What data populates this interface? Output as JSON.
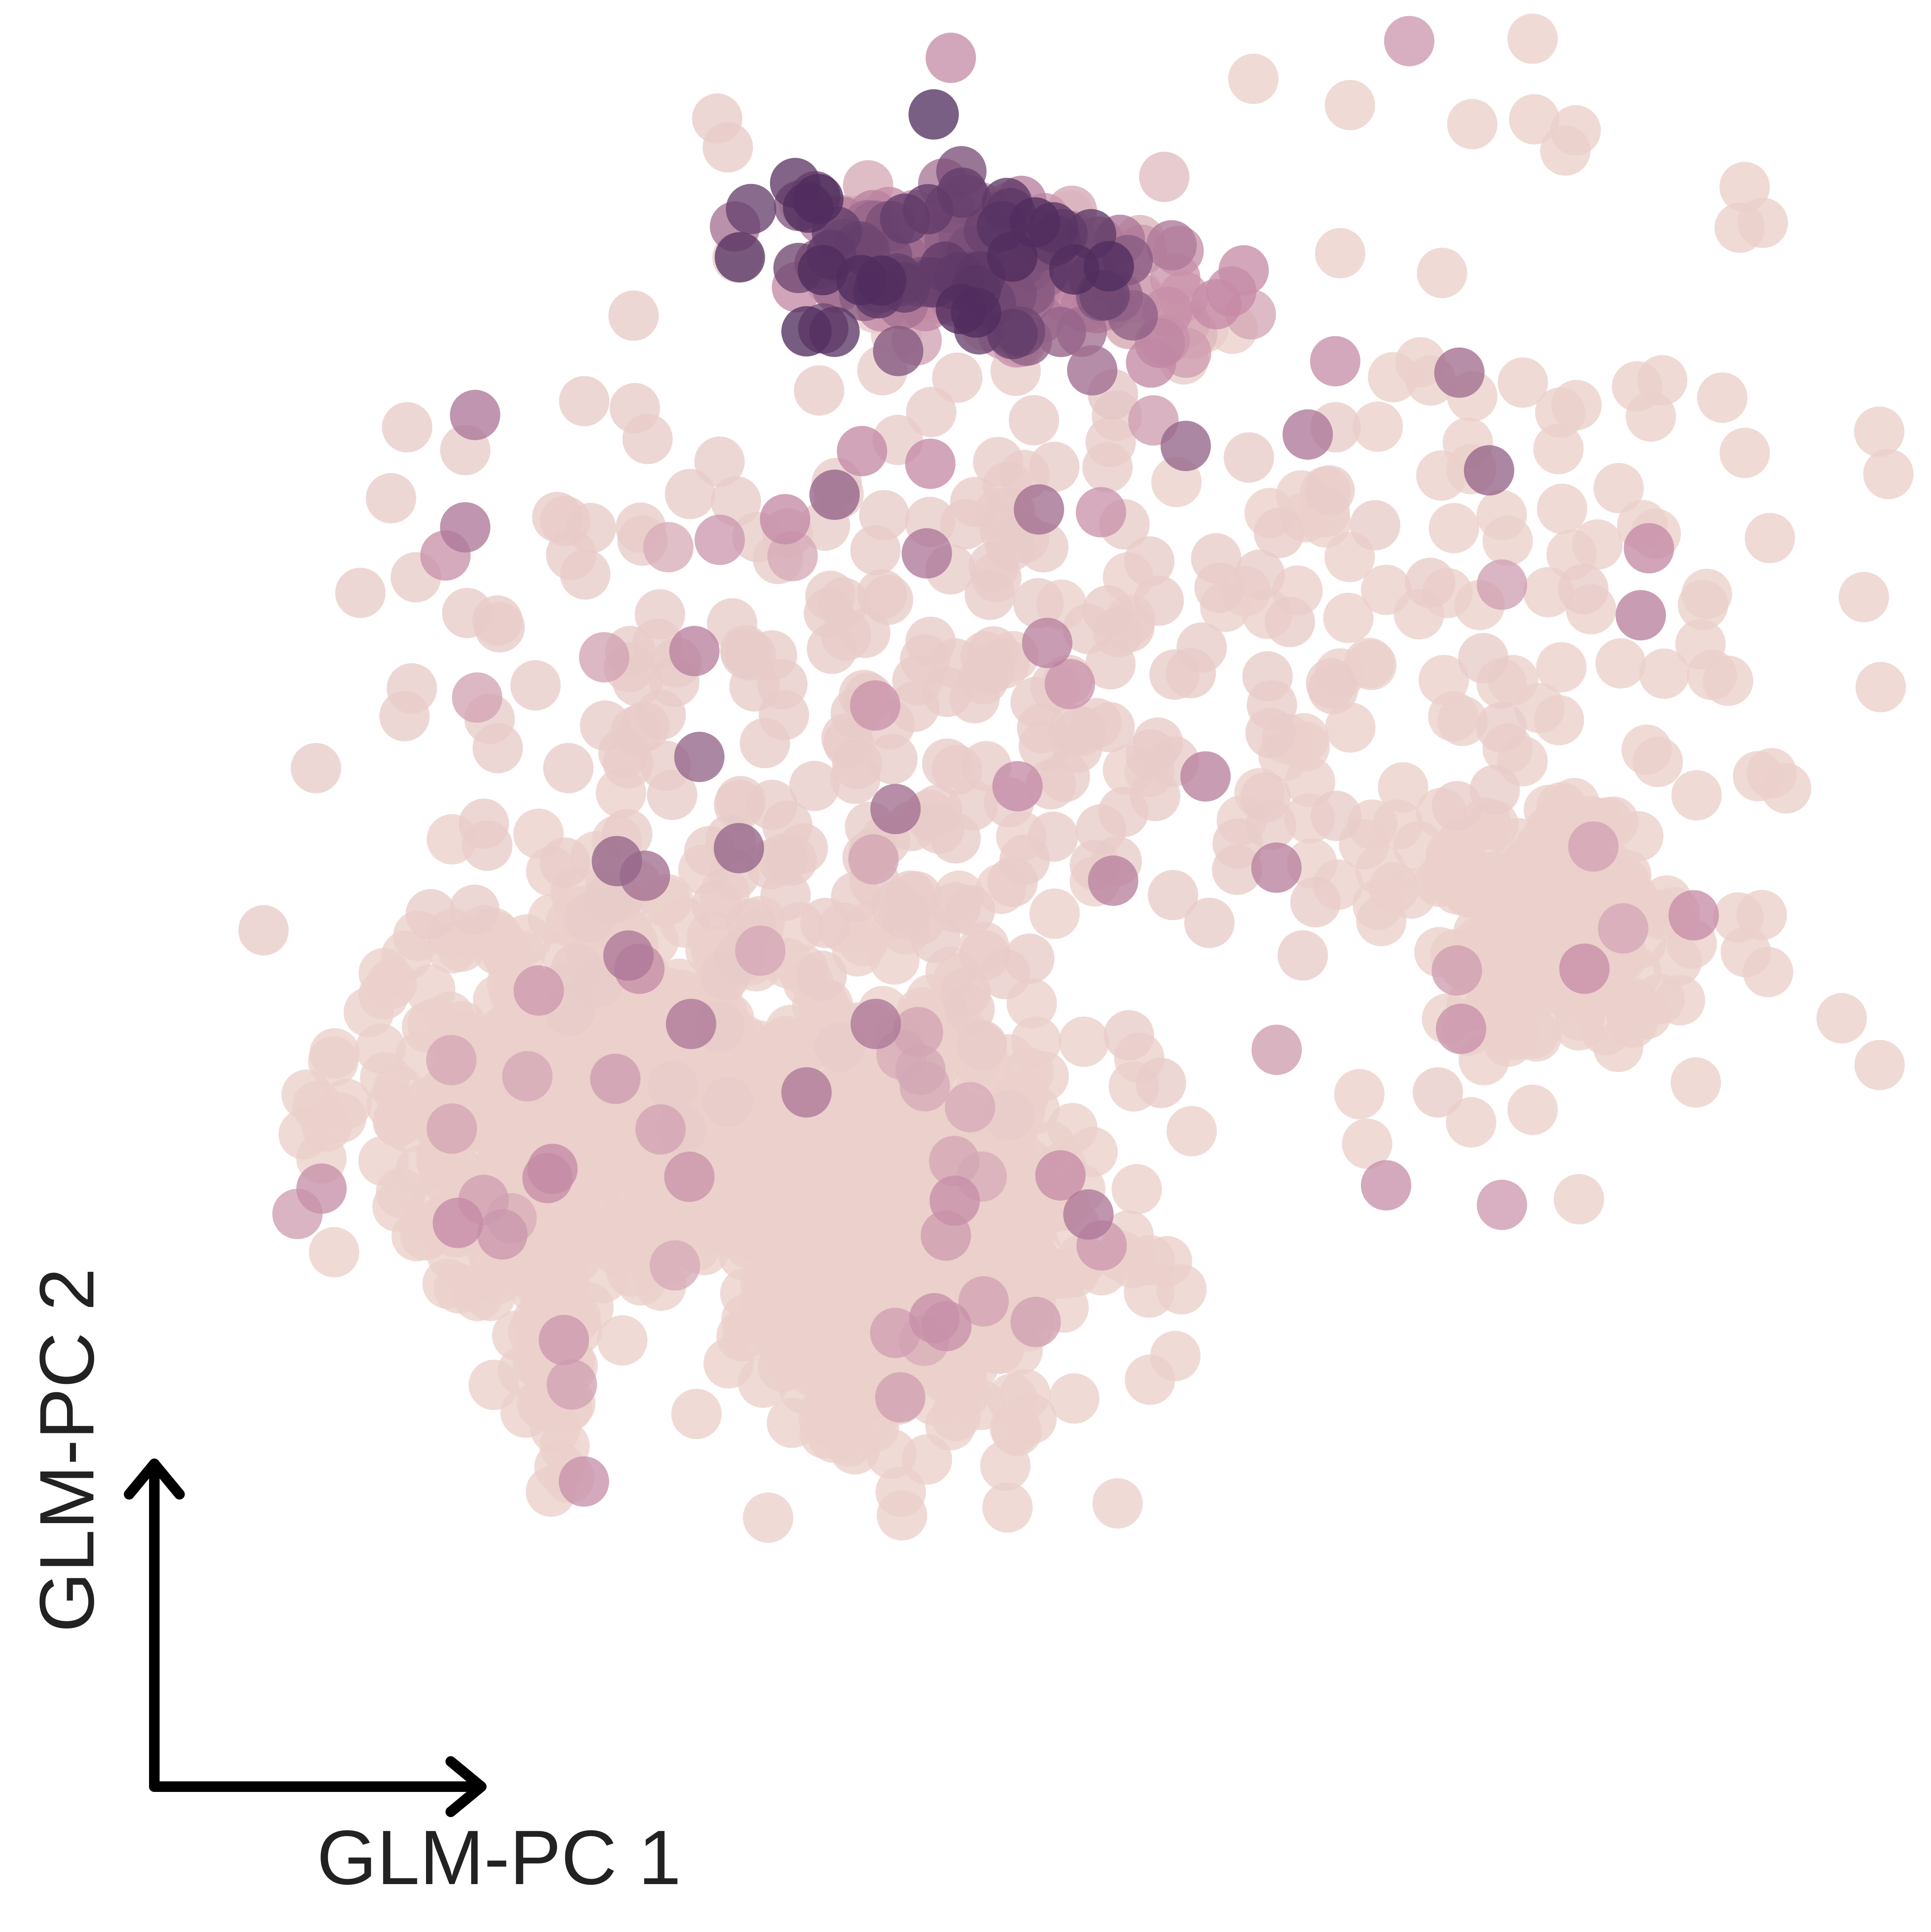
{
  "chart_data": {
    "type": "scatter",
    "title": "",
    "xlabel": "GLM-PC 1",
    "ylabel": "GLM-PC 2",
    "xlim": [
      0,
      100
    ],
    "ylim": [
      0,
      100
    ],
    "axes": "arrows-only",
    "grid": false,
    "legend": "none",
    "color_scale": {
      "low": "#ecd3cd",
      "mid": "#c48aa6",
      "high": "#4f2d5e"
    },
    "clusters": [
      {
        "name": "",
        "center": [
          23,
          38
        ],
        "spread": [
          6.5,
          6.0
        ],
        "count": 520,
        "level": 0.02
      },
      {
        "name": "",
        "center": [
          43,
          31
        ],
        "spread": [
          5.5,
          7.0
        ],
        "count": 560,
        "level": 0.03
      },
      {
        "name": "",
        "center": [
          82,
          49
        ],
        "spread": [
          3.5,
          3.5
        ],
        "count": 180,
        "level": 0.03
      },
      {
        "name": "",
        "center": [
          48,
          89
        ],
        "spread": [
          6.5,
          2.5
        ],
        "count": 230,
        "level": 0.62
      },
      {
        "name": "",
        "center": [
          42,
          62
        ],
        "spread": [
          14.0,
          12.0
        ],
        "count": 280,
        "level": 0.05
      },
      {
        "name": "",
        "center": [
          78,
          62
        ],
        "spread": [
          12.0,
          16.0
        ],
        "count": 150,
        "level": 0.03
      },
      {
        "name": "",
        "center": [
          21,
          22
        ],
        "spread": [
          1.2,
          4.0
        ],
        "count": 45,
        "level": 0.03
      }
    ],
    "highlighted_points": [
      {
        "x": 16.5,
        "y": 80.0,
        "level": 0.6
      },
      {
        "x": 15.9,
        "y": 73.1,
        "level": 0.6
      },
      {
        "x": 29.8,
        "y": 65.5,
        "level": 0.55
      },
      {
        "x": 30.1,
        "y": 59.0,
        "level": 0.7
      },
      {
        "x": 35.3,
        "y": 73.6,
        "level": 0.5
      },
      {
        "x": 38.3,
        "y": 75.1,
        "level": 0.7
      },
      {
        "x": 49.4,
        "y": 57.2,
        "level": 0.5
      },
      {
        "x": 51.2,
        "y": 66.0,
        "level": 0.55
      },
      {
        "x": 60.8,
        "y": 57.8,
        "level": 0.55
      },
      {
        "x": 55.2,
        "y": 51.4,
        "level": 0.55
      },
      {
        "x": 42.0,
        "y": 55.8,
        "level": 0.65
      },
      {
        "x": 32.5,
        "y": 53.4,
        "level": 0.7
      },
      {
        "x": 25.1,
        "y": 52.6,
        "level": 0.7
      },
      {
        "x": 26.8,
        "y": 51.7,
        "level": 0.65
      },
      {
        "x": 25.8,
        "y": 46.8,
        "level": 0.6
      },
      {
        "x": 29.6,
        "y": 42.6,
        "level": 0.6
      },
      {
        "x": 40.8,
        "y": 42.6,
        "level": 0.6
      },
      {
        "x": 36.6,
        "y": 38.4,
        "level": 0.6
      },
      {
        "x": 53.7,
        "y": 30.9,
        "level": 0.6
      },
      {
        "x": 76.3,
        "y": 42.3,
        "level": 0.45
      },
      {
        "x": 65.1,
        "y": 52.2,
        "level": 0.55
      },
      {
        "x": 67.0,
        "y": 78.8,
        "level": 0.6
      },
      {
        "x": 76.2,
        "y": 82.6,
        "level": 0.65
      },
      {
        "x": 78.0,
        "y": 76.6,
        "level": 0.7
      },
      {
        "x": 87.2,
        "y": 67.7,
        "level": 0.55
      },
      {
        "x": 59.6,
        "y": 78.1,
        "level": 0.7
      },
      {
        "x": 50.7,
        "y": 74.2,
        "level": 0.65
      },
      {
        "x": 43.9,
        "y": 71.5,
        "level": 0.6
      },
      {
        "x": 23.1,
        "y": 14.5,
        "level": 0.45
      },
      {
        "x": 54.5,
        "y": 29.0,
        "level": 0.4
      },
      {
        "x": 50.5,
        "y": 24.3,
        "level": 0.35
      },
      {
        "x": 33.8,
        "y": 47.1,
        "level": 0.3
      }
    ],
    "outlier_points": [
      {
        "x": 93.5,
        "y": 94.0,
        "level": 0.02
      },
      {
        "x": 94.6,
        "y": 91.8,
        "level": 0.02
      },
      {
        "x": 93.2,
        "y": 91.5,
        "level": 0.02
      }
    ]
  }
}
